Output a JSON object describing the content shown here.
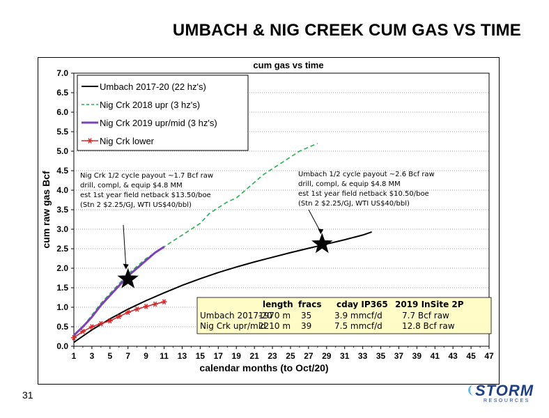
{
  "slide": {
    "title": "UMBACH & NIG CREEK CUM GAS VS TIME",
    "page_number": "31",
    "logo_text": "STORM",
    "logo_subtext": "RESOURCES",
    "logo_color": "#1d3f86"
  },
  "chart_data": {
    "type": "line",
    "title": "cum gas vs time",
    "xlabel": "calendar months (to Oct/20)",
    "ylabel": "cum raw gas Bcf",
    "xlim": [
      1,
      47
    ],
    "ylim": [
      0,
      7
    ],
    "xticks": [
      1,
      3,
      5,
      7,
      9,
      11,
      13,
      15,
      17,
      19,
      21,
      23,
      25,
      27,
      29,
      31,
      33,
      35,
      37,
      39,
      41,
      43,
      45,
      47
    ],
    "yticks": [
      0,
      0.5,
      1,
      1.5,
      2,
      2.5,
      3,
      3.5,
      4,
      4.5,
      5,
      5.5,
      6,
      6.5,
      7
    ],
    "ytick_labels": [
      "0.0",
      "0.5",
      "1.0",
      "1.5",
      "2.0",
      "2.5",
      "3.0",
      "3.5",
      "4.0",
      "4.5",
      "5.0",
      "5.5",
      "6.0",
      "6.5",
      "7.0"
    ],
    "grid": "horizontal",
    "legend_position": "top-left",
    "series": [
      {
        "name": "Umbach 2017-20 (22 hz's)",
        "color": "#000000",
        "style": "solid",
        "marker": "none",
        "x": [
          1,
          3,
          5,
          7,
          9,
          11,
          13,
          15,
          17,
          19,
          21,
          23,
          25,
          27,
          29,
          31,
          33,
          34
        ],
        "y": [
          0.1,
          0.42,
          0.7,
          0.95,
          1.17,
          1.37,
          1.56,
          1.73,
          1.89,
          2.03,
          2.16,
          2.28,
          2.4,
          2.51,
          2.62,
          2.73,
          2.85,
          2.93
        ]
      },
      {
        "name": "Nig Crk  2018 upr (3 hz's)",
        "color": "#22b14c",
        "style": "dashed",
        "marker": "none",
        "x": [
          1,
          2,
          3,
          4,
          5,
          6,
          7,
          8,
          9,
          10,
          11,
          12,
          13,
          14,
          15,
          16,
          17,
          18,
          19,
          20,
          21,
          22,
          23,
          24,
          25,
          26,
          27,
          28
        ],
        "y": [
          0.25,
          0.5,
          0.8,
          1.1,
          1.35,
          1.6,
          1.85,
          2.05,
          2.25,
          2.4,
          2.55,
          2.7,
          2.85,
          3.0,
          3.15,
          3.4,
          3.55,
          3.7,
          3.8,
          4.0,
          4.2,
          4.4,
          4.55,
          4.7,
          4.85,
          5.0,
          5.1,
          5.2
        ]
      },
      {
        "name": "Nig Crk  2019 upr/mid (3 hz's)",
        "color": "#7e40b5",
        "style": "solid",
        "marker": "none",
        "x": [
          1,
          2,
          3,
          4,
          5,
          6,
          7,
          8,
          9,
          10,
          11
        ],
        "y": [
          0.28,
          0.5,
          0.75,
          1.05,
          1.3,
          1.55,
          1.8,
          2.0,
          2.2,
          2.4,
          2.55
        ]
      },
      {
        "name": "Nig Crk lower",
        "color": "#d62728",
        "style": "solid",
        "marker": "star",
        "x": [
          1,
          2,
          3,
          4,
          5,
          6,
          7,
          8,
          9,
          10,
          11
        ],
        "y": [
          0.22,
          0.38,
          0.5,
          0.58,
          0.65,
          0.76,
          0.87,
          0.95,
          1.02,
          1.08,
          1.14
        ]
      }
    ],
    "annotations": [
      {
        "lines": [
          "Nig Crk 1/2 cycle payout ~1.7 Bcf raw",
          "drill, compl, & equip $4.8 MM",
          "est 1st year field netback $13.50/boe",
          "(Stn 2 $2.25/GJ, WTI US$40/bbl)"
        ],
        "point": [
          7,
          1.72
        ]
      },
      {
        "lines": [
          "Umbach 1/2 cycle payout ~2.6 Bcf raw",
          "drill, compl, & equip $4.8 MM",
          "est 1st year field netback $10.50/boe",
          "(Stn 2 $2.25/GJ, WTI US$40/bbl)"
        ],
        "point": [
          28.5,
          2.62
        ]
      }
    ],
    "table": {
      "background": "#fffcc8",
      "headers": [
        "length",
        "fracs",
        "cday IP365",
        "2019 InSite 2P"
      ],
      "rows": [
        {
          "label": "Umbach 2017-20",
          "cells": [
            "1970 m",
            "35",
            "3.9 mmcf/d",
            "7.7 Bcf raw"
          ]
        },
        {
          "label": "Nig Crk upr/mid",
          "cells": [
            "2210 m",
            "39",
            "7.5 mmcf/d",
            "12.8 Bcf raw"
          ]
        }
      ]
    }
  }
}
